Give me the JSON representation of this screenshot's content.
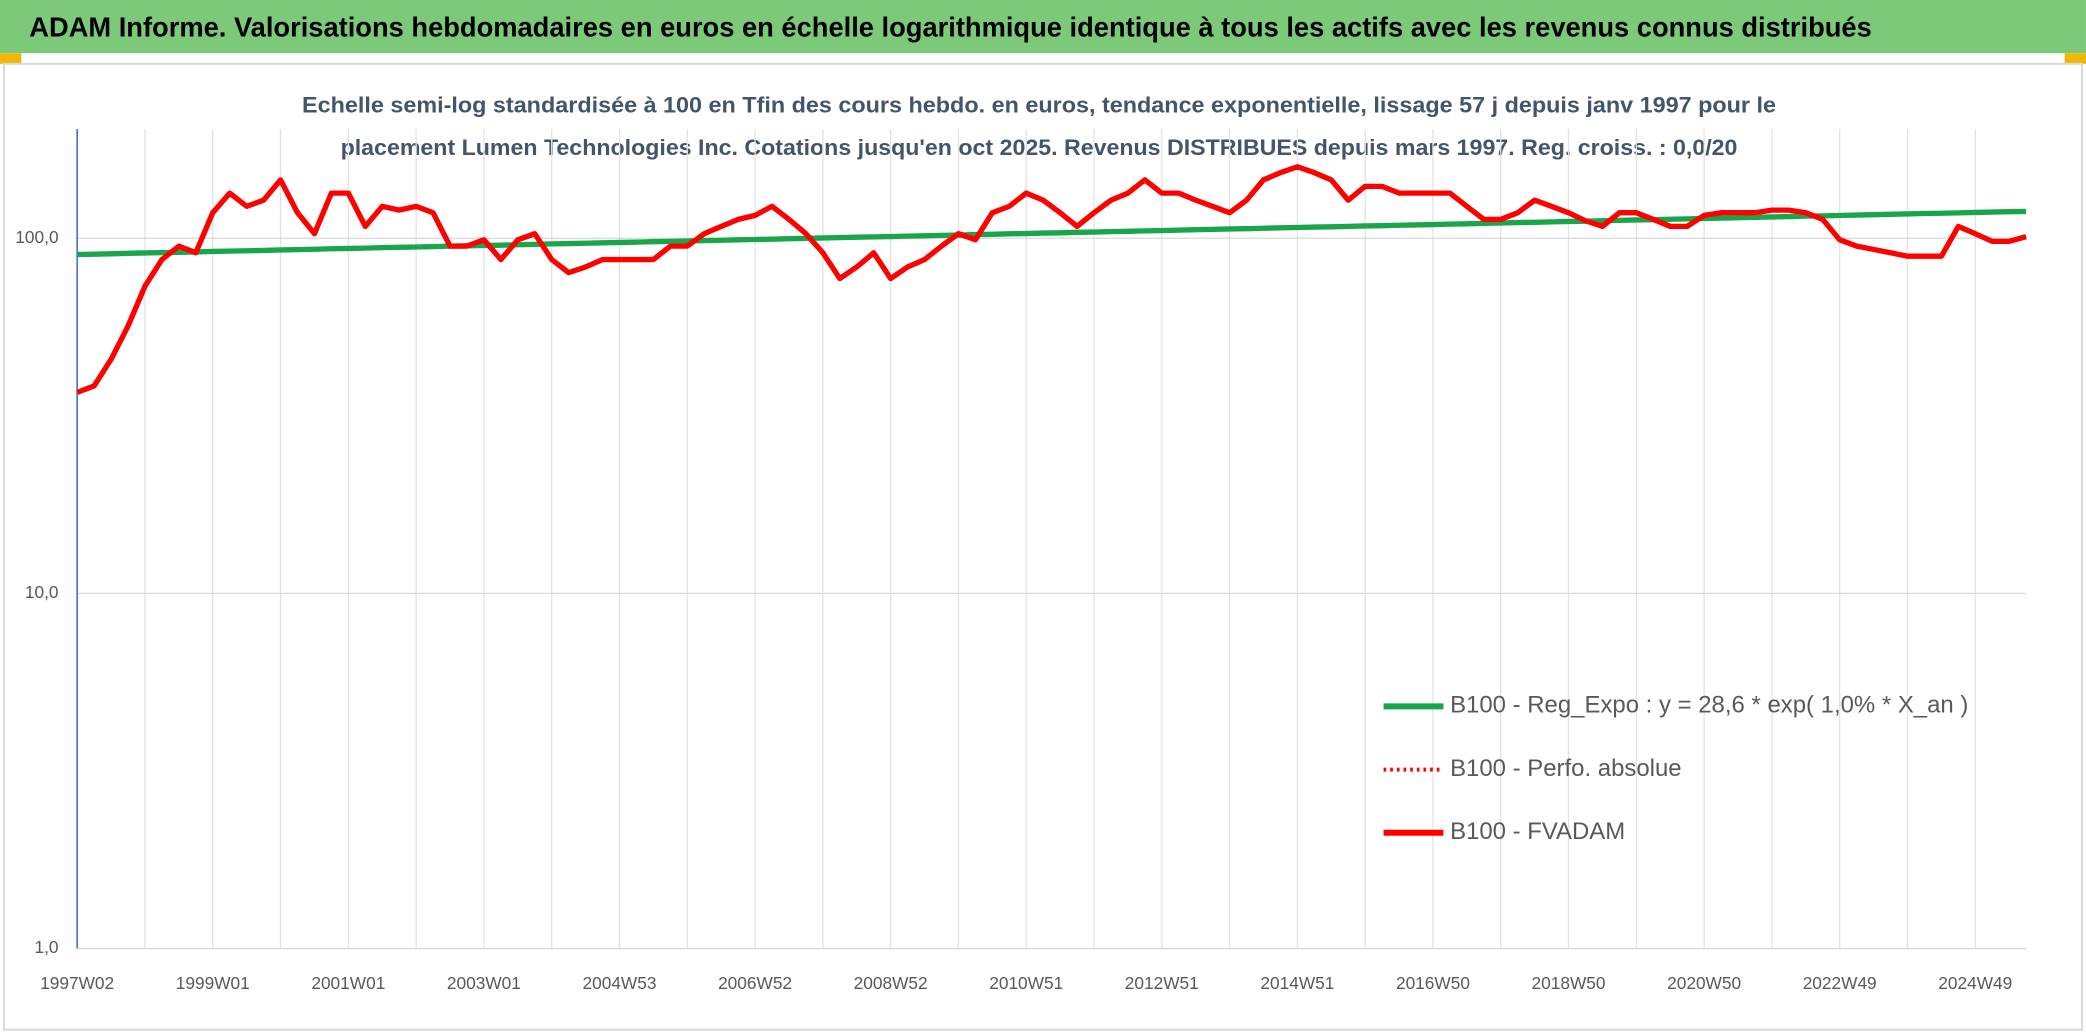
{
  "chart_data": {
    "type": "line",
    "title": "ADAM Informe. Valorisations hebdomadaires en euros en échelle logarithmique identique à tous les actifs avec les revenus connus distribués",
    "subtitle": [
      "Echelle semi-log standardisée à 100 en Tfin des cours hebdo. en euros, tendance exponentielle, lissage 57 j depuis janv 1997 pour le",
      "placement Lumen Technologies Inc. Cotations jusqu'en oct 2025. Revenus DISTRIBUES depuis mars 1997. Reg. croiss. : 0,0/20"
    ],
    "log_scale": true,
    "grid": true,
    "ylim": [
      1,
      203
    ],
    "yticks": [
      {
        "value": 1,
        "label": "1,0"
      },
      {
        "value": 10,
        "label": "10,0"
      },
      {
        "value": 100,
        "label": "100,0"
      }
    ],
    "categories": [
      "1997W02",
      null,
      null,
      null,
      null,
      null,
      null,
      null,
      "1999W01",
      null,
      null,
      null,
      null,
      null,
      null,
      null,
      "2001W01",
      null,
      null,
      null,
      null,
      null,
      null,
      null,
      "2003W01",
      null,
      null,
      null,
      null,
      null,
      null,
      null,
      "2004W53",
      null,
      null,
      null,
      null,
      null,
      null,
      null,
      "2006W52",
      null,
      null,
      null,
      null,
      null,
      null,
      null,
      "2008W52",
      null,
      null,
      null,
      null,
      null,
      null,
      null,
      "2010W51",
      null,
      null,
      null,
      null,
      null,
      null,
      null,
      "2012W51",
      null,
      null,
      null,
      null,
      null,
      null,
      null,
      "2014W51",
      null,
      null,
      null,
      null,
      null,
      null,
      null,
      "2016W50",
      null,
      null,
      null,
      null,
      null,
      null,
      null,
      "2018W50",
      null,
      null,
      null,
      null,
      null,
      null,
      null,
      "2020W50",
      null,
      null,
      null,
      null,
      null,
      null,
      null,
      "2022W49",
      null,
      null,
      null,
      null,
      null,
      null,
      null,
      "2024W49",
      null,
      null,
      null
    ],
    "series": [
      {
        "name": "B100 - Reg_Expo : y = 28,6 * exp( 1,0% *  X_an )",
        "color": "#1aa54b",
        "style": "solid",
        "values": [
          90.0,
          90.2,
          90.4,
          90.7,
          90.9,
          91.1,
          91.3,
          91.5,
          91.8,
          92.0,
          92.2,
          92.4,
          92.7,
          92.9,
          93.1,
          93.4,
          93.6,
          93.8,
          94.1,
          94.3,
          94.5,
          94.7,
          95.0,
          95.2,
          95.4,
          95.6,
          95.9,
          96.1,
          96.4,
          96.6,
          96.8,
          97.1,
          97.3,
          97.5,
          97.8,
          98.0,
          98.2,
          98.5,
          98.7,
          99.0,
          99.2,
          99.4,
          99.7,
          99.9,
          100.2,
          100.4,
          100.7,
          100.9,
          101.1,
          101.4,
          101.6,
          101.9,
          102.1,
          102.4,
          102.6,
          102.9,
          103.1,
          103.4,
          103.6,
          103.9,
          104.1,
          104.4,
          104.6,
          104.9,
          105.1,
          105.4,
          105.7,
          105.9,
          106.2,
          106.4,
          106.7,
          107.0,
          107.2,
          107.5,
          107.7,
          108.0,
          108.3,
          108.5,
          108.8,
          109.0,
          109.3,
          109.6,
          109.8,
          110.1,
          110.4,
          110.7,
          110.9,
          111.2,
          111.5,
          111.7,
          112.0,
          112.3,
          112.6,
          112.8,
          113.1,
          113.4,
          113.7,
          114.0,
          114.2,
          114.5,
          114.8,
          115.1,
          115.4,
          115.6,
          115.9,
          116.2,
          116.5,
          116.8,
          117.1,
          117.4,
          117.6,
          117.9,
          118.2,
          118.5,
          118.8,
          119.0
        ]
      },
      {
        "name": "B100 - Perfo. absolue",
        "color": "#ff0000",
        "style": "dotted",
        "values": [
          36.8,
          38.4,
          45.6,
          56.6,
          73.3,
          87.1,
          95,
          91,
          118,
          134,
          123,
          128,
          146,
          118,
          103,
          134,
          134,
          108,
          123,
          120,
          123,
          118,
          95,
          95,
          99,
          87.1,
          99,
          103,
          87.1,
          80,
          83,
          87.1,
          87.1,
          87.1,
          87.1,
          95,
          95,
          103,
          108,
          113,
          116,
          123,
          113,
          103,
          91,
          77,
          83,
          91,
          77,
          83,
          87.1,
          95,
          103,
          99,
          118,
          123,
          134,
          128,
          118,
          108,
          118,
          128,
          134,
          146,
          134,
          134,
          128,
          123,
          118,
          128,
          146,
          153,
          159,
          153,
          146,
          128,
          140,
          140,
          134,
          134,
          134,
          134,
          123,
          113,
          113,
          118,
          128,
          123,
          118,
          112,
          108,
          118,
          118,
          113,
          108,
          108,
          116,
          118,
          118,
          118,
          120,
          120,
          118,
          113,
          99,
          95,
          93,
          91,
          89,
          89,
          89,
          108,
          103,
          98,
          98,
          101
        ]
      },
      {
        "name": "B100 - FVADAM",
        "color": "#ff0000",
        "style": "solid",
        "values": [
          36.8,
          38.4,
          45.6,
          56.6,
          73.3,
          87.1,
          95,
          91,
          118,
          134,
          123,
          128,
          146,
          118,
          103,
          134,
          134,
          108,
          123,
          120,
          123,
          118,
          95,
          95,
          99,
          87.1,
          99,
          103,
          87.1,
          80,
          83,
          87.1,
          87.1,
          87.1,
          87.1,
          95,
          95,
          103,
          108,
          113,
          116,
          123,
          113,
          103,
          91,
          77,
          83,
          91,
          77,
          83,
          87.1,
          95,
          103,
          99,
          118,
          123,
          134,
          128,
          118,
          108,
          118,
          128,
          134,
          146,
          134,
          134,
          128,
          123,
          118,
          128,
          146,
          153,
          159,
          153,
          146,
          128,
          140,
          140,
          134,
          134,
          134,
          134,
          123,
          113,
          113,
          118,
          128,
          123,
          118,
          112,
          108,
          118,
          118,
          113,
          108,
          108,
          116,
          118,
          118,
          118,
          120,
          120,
          118,
          113,
          99,
          95,
          93,
          91,
          89,
          89,
          89,
          108,
          103,
          98,
          98,
          101
        ]
      }
    ]
  }
}
